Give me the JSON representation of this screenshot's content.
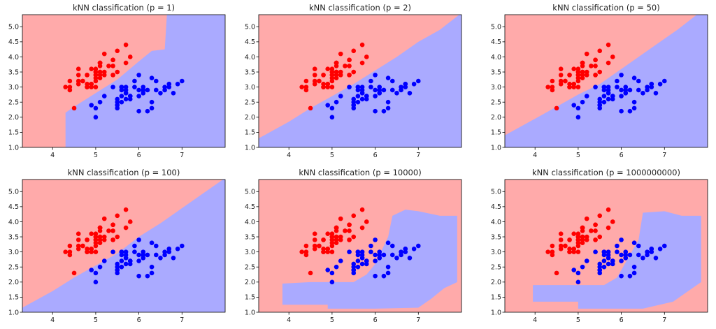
{
  "colors": {
    "region_red": "#ffaaaa",
    "region_blue": "#aaaaff",
    "points_red": "#ff0000",
    "points_blue": "#0000ff",
    "axis": "#000000"
  },
  "chart_data": [
    {
      "type": "scatter",
      "title": "kNN classification (p = 1)",
      "xlim": [
        3.3,
        8.0
      ],
      "ylim": [
        1.0,
        5.4
      ],
      "xticks": [
        "4",
        "5",
        "6",
        "7"
      ],
      "yticks": [
        "1.0",
        "1.5",
        "2.0",
        "2.5",
        "3.0",
        "3.5",
        "4.0",
        "4.5",
        "5.0"
      ],
      "boundary": [
        [
          4.3,
          1.0
        ],
        [
          4.3,
          2.15
        ],
        [
          4.5,
          2.35
        ],
        [
          5.0,
          2.8
        ],
        [
          5.5,
          3.25
        ],
        [
          6.0,
          3.85
        ],
        [
          6.3,
          4.2
        ],
        [
          6.6,
          4.25
        ],
        [
          6.65,
          5.4
        ]
      ]
    },
    {
      "type": "scatter",
      "title": "kNN classification (p = 2)",
      "xlim": [
        3.3,
        8.0
      ],
      "ylim": [
        1.0,
        5.4
      ],
      "xticks": [
        "4",
        "5",
        "6",
        "7"
      ],
      "yticks": [
        "1.0",
        "1.5",
        "2.0",
        "2.5",
        "3.0",
        "3.5",
        "4.0",
        "4.5",
        "5.0"
      ],
      "boundary": [
        [
          3.3,
          1.3
        ],
        [
          4.0,
          1.85
        ],
        [
          4.5,
          2.3
        ],
        [
          5.0,
          2.7
        ],
        [
          5.5,
          3.1
        ],
        [
          6.0,
          3.55
        ],
        [
          6.5,
          4.0
        ],
        [
          7.0,
          4.5
        ],
        [
          7.5,
          4.9
        ],
        [
          7.95,
          5.4
        ]
      ]
    },
    {
      "type": "scatter",
      "title": "kNN classification (p = 50)",
      "xlim": [
        3.3,
        8.0
      ],
      "ylim": [
        1.0,
        5.4
      ],
      "xticks": [
        "4",
        "5",
        "6",
        "7"
      ],
      "yticks": [
        "1.0",
        "1.5",
        "2.0",
        "2.5",
        "3.0",
        "3.5",
        "4.0",
        "4.5",
        "5.0"
      ],
      "boundary": [
        [
          3.3,
          1.4
        ],
        [
          4.0,
          1.95
        ],
        [
          4.5,
          2.35
        ],
        [
          5.0,
          2.75
        ],
        [
          5.5,
          3.1
        ],
        [
          6.0,
          3.6
        ],
        [
          6.5,
          4.1
        ],
        [
          7.0,
          4.6
        ],
        [
          7.3,
          4.9
        ],
        [
          7.75,
          5.4
        ]
      ]
    },
    {
      "type": "scatter",
      "title": "kNN classification (p = 100)",
      "xlim": [
        3.3,
        8.0
      ],
      "ylim": [
        1.0,
        5.4
      ],
      "xticks": [
        "4",
        "5",
        "6",
        "7"
      ],
      "yticks": [
        "1.0",
        "1.5",
        "2.0",
        "2.5",
        "3.0",
        "3.5",
        "4.0",
        "4.5",
        "5.0"
      ],
      "boundary": [
        [
          3.3,
          1.15
        ],
        [
          4.0,
          1.7
        ],
        [
          4.5,
          2.15
        ],
        [
          5.0,
          2.55
        ],
        [
          5.5,
          2.95
        ],
        [
          6.0,
          3.5
        ],
        [
          6.5,
          3.95
        ],
        [
          7.0,
          4.45
        ],
        [
          7.5,
          4.95
        ],
        [
          7.95,
          5.4
        ]
      ]
    },
    {
      "type": "scatter",
      "title": "kNN classification (p = 10000)",
      "xlim": [
        3.3,
        8.0
      ],
      "ylim": [
        1.0,
        5.4
      ],
      "xticks": [
        "4",
        "5",
        "6",
        "7"
      ],
      "yticks": [
        "1.0",
        "1.5",
        "2.0",
        "2.5",
        "3.0",
        "3.5",
        "4.0",
        "4.5",
        "5.0"
      ],
      "region": [
        [
          3.85,
          1.25
        ],
        [
          3.85,
          1.95
        ],
        [
          4.5,
          2.0
        ],
        [
          5.5,
          2.0
        ],
        [
          5.8,
          2.25
        ],
        [
          6.0,
          2.6
        ],
        [
          6.3,
          3.5
        ],
        [
          6.4,
          4.2
        ],
        [
          6.7,
          4.4
        ],
        [
          7.0,
          4.35
        ],
        [
          7.5,
          4.2
        ],
        [
          7.9,
          4.2
        ],
        [
          7.9,
          2.0
        ],
        [
          7.6,
          1.8
        ],
        [
          7.3,
          1.45
        ],
        [
          7.0,
          1.15
        ],
        [
          6.0,
          1.12
        ],
        [
          4.9,
          1.12
        ],
        [
          4.9,
          1.25
        ]
      ]
    },
    {
      "type": "scatter",
      "title": "kNN classification (p = 1000000000)",
      "xlim": [
        3.3,
        8.0
      ],
      "ylim": [
        1.0,
        5.4
      ],
      "xticks": [
        "4",
        "5",
        "6",
        "7"
      ],
      "yticks": [
        "1.0",
        "1.5",
        "2.0",
        "2.5",
        "3.0",
        "3.5",
        "4.0",
        "4.5",
        "5.0"
      ],
      "region": [
        [
          3.95,
          1.35
        ],
        [
          3.95,
          1.9
        ],
        [
          4.5,
          1.9
        ],
        [
          5.6,
          1.9
        ],
        [
          5.9,
          2.15
        ],
        [
          6.1,
          2.65
        ],
        [
          6.4,
          3.4
        ],
        [
          6.5,
          4.3
        ],
        [
          7.0,
          4.35
        ],
        [
          7.4,
          4.2
        ],
        [
          7.85,
          4.2
        ],
        [
          7.85,
          2.0
        ],
        [
          7.5,
          1.65
        ],
        [
          7.2,
          1.35
        ],
        [
          6.5,
          1.12
        ],
        [
          5.0,
          1.12
        ],
        [
          5.0,
          1.35
        ]
      ]
    }
  ],
  "points": {
    "red": [
      [
        5.1,
        3.5
      ],
      [
        4.9,
        3.0
      ],
      [
        4.7,
        3.2
      ],
      [
        4.6,
        3.1
      ],
      [
        5.0,
        3.6
      ],
      [
        5.4,
        3.9
      ],
      [
        4.6,
        3.4
      ],
      [
        5.0,
        3.4
      ],
      [
        4.4,
        2.9
      ],
      [
        4.9,
        3.1
      ],
      [
        5.4,
        3.7
      ],
      [
        4.8,
        3.4
      ],
      [
        4.8,
        3.0
      ],
      [
        4.3,
        3.0
      ],
      [
        5.8,
        4.0
      ],
      [
        5.7,
        4.4
      ],
      [
        5.4,
        3.9
      ],
      [
        5.1,
        3.5
      ],
      [
        5.7,
        3.8
      ],
      [
        5.1,
        3.8
      ],
      [
        5.4,
        3.4
      ],
      [
        5.1,
        3.7
      ],
      [
        4.6,
        3.6
      ],
      [
        5.1,
        3.3
      ],
      [
        4.8,
        3.4
      ],
      [
        5.0,
        3.0
      ],
      [
        5.0,
        3.4
      ],
      [
        5.2,
        3.5
      ],
      [
        5.2,
        3.4
      ],
      [
        4.7,
        3.2
      ],
      [
        4.8,
        3.1
      ],
      [
        5.4,
        3.4
      ],
      [
        5.2,
        4.1
      ],
      [
        5.5,
        4.2
      ],
      [
        4.9,
        3.1
      ],
      [
        5.0,
        3.2
      ],
      [
        5.5,
        3.5
      ],
      [
        4.9,
        3.6
      ],
      [
        4.4,
        3.0
      ],
      [
        5.1,
        3.4
      ],
      [
        5.0,
        3.5
      ],
      [
        4.5,
        2.3
      ],
      [
        4.4,
        3.2
      ],
      [
        5.0,
        3.5
      ],
      [
        5.1,
        3.8
      ],
      [
        4.8,
        3.0
      ],
      [
        5.1,
        3.8
      ],
      [
        4.6,
        3.2
      ],
      [
        5.3,
        3.7
      ],
      [
        5.0,
        3.3
      ]
    ],
    "blue": [
      [
        7.0,
        3.2
      ],
      [
        6.4,
        3.2
      ],
      [
        6.9,
        3.1
      ],
      [
        5.5,
        2.3
      ],
      [
        6.5,
        2.8
      ],
      [
        5.7,
        2.8
      ],
      [
        6.3,
        3.3
      ],
      [
        4.9,
        2.4
      ],
      [
        6.6,
        2.9
      ],
      [
        5.2,
        2.7
      ],
      [
        5.0,
        2.0
      ],
      [
        5.9,
        3.0
      ],
      [
        6.0,
        2.2
      ],
      [
        6.1,
        2.9
      ],
      [
        5.6,
        2.9
      ],
      [
        6.7,
        3.1
      ],
      [
        5.6,
        3.0
      ],
      [
        5.8,
        2.7
      ],
      [
        6.2,
        2.2
      ],
      [
        5.6,
        2.5
      ],
      [
        5.9,
        3.2
      ],
      [
        6.1,
        2.8
      ],
      [
        6.3,
        2.5
      ],
      [
        6.1,
        2.8
      ],
      [
        6.4,
        2.9
      ],
      [
        6.6,
        3.0
      ],
      [
        6.8,
        2.8
      ],
      [
        6.7,
        3.0
      ],
      [
        6.0,
        2.9
      ],
      [
        5.7,
        2.6
      ],
      [
        5.5,
        2.4
      ],
      [
        5.5,
        2.4
      ],
      [
        5.8,
        2.7
      ],
      [
        6.0,
        2.7
      ],
      [
        5.4,
        3.0
      ],
      [
        6.0,
        3.4
      ],
      [
        6.7,
        3.1
      ],
      [
        6.3,
        2.3
      ],
      [
        5.6,
        3.0
      ],
      [
        5.5,
        2.5
      ],
      [
        5.5,
        2.6
      ],
      [
        6.1,
        3.0
      ],
      [
        5.8,
        2.6
      ],
      [
        5.0,
        2.3
      ],
      [
        5.6,
        2.7
      ],
      [
        5.7,
        3.0
      ],
      [
        5.7,
        2.9
      ],
      [
        6.2,
        2.9
      ],
      [
        5.1,
        2.5
      ],
      [
        5.7,
        2.8
      ]
    ]
  }
}
